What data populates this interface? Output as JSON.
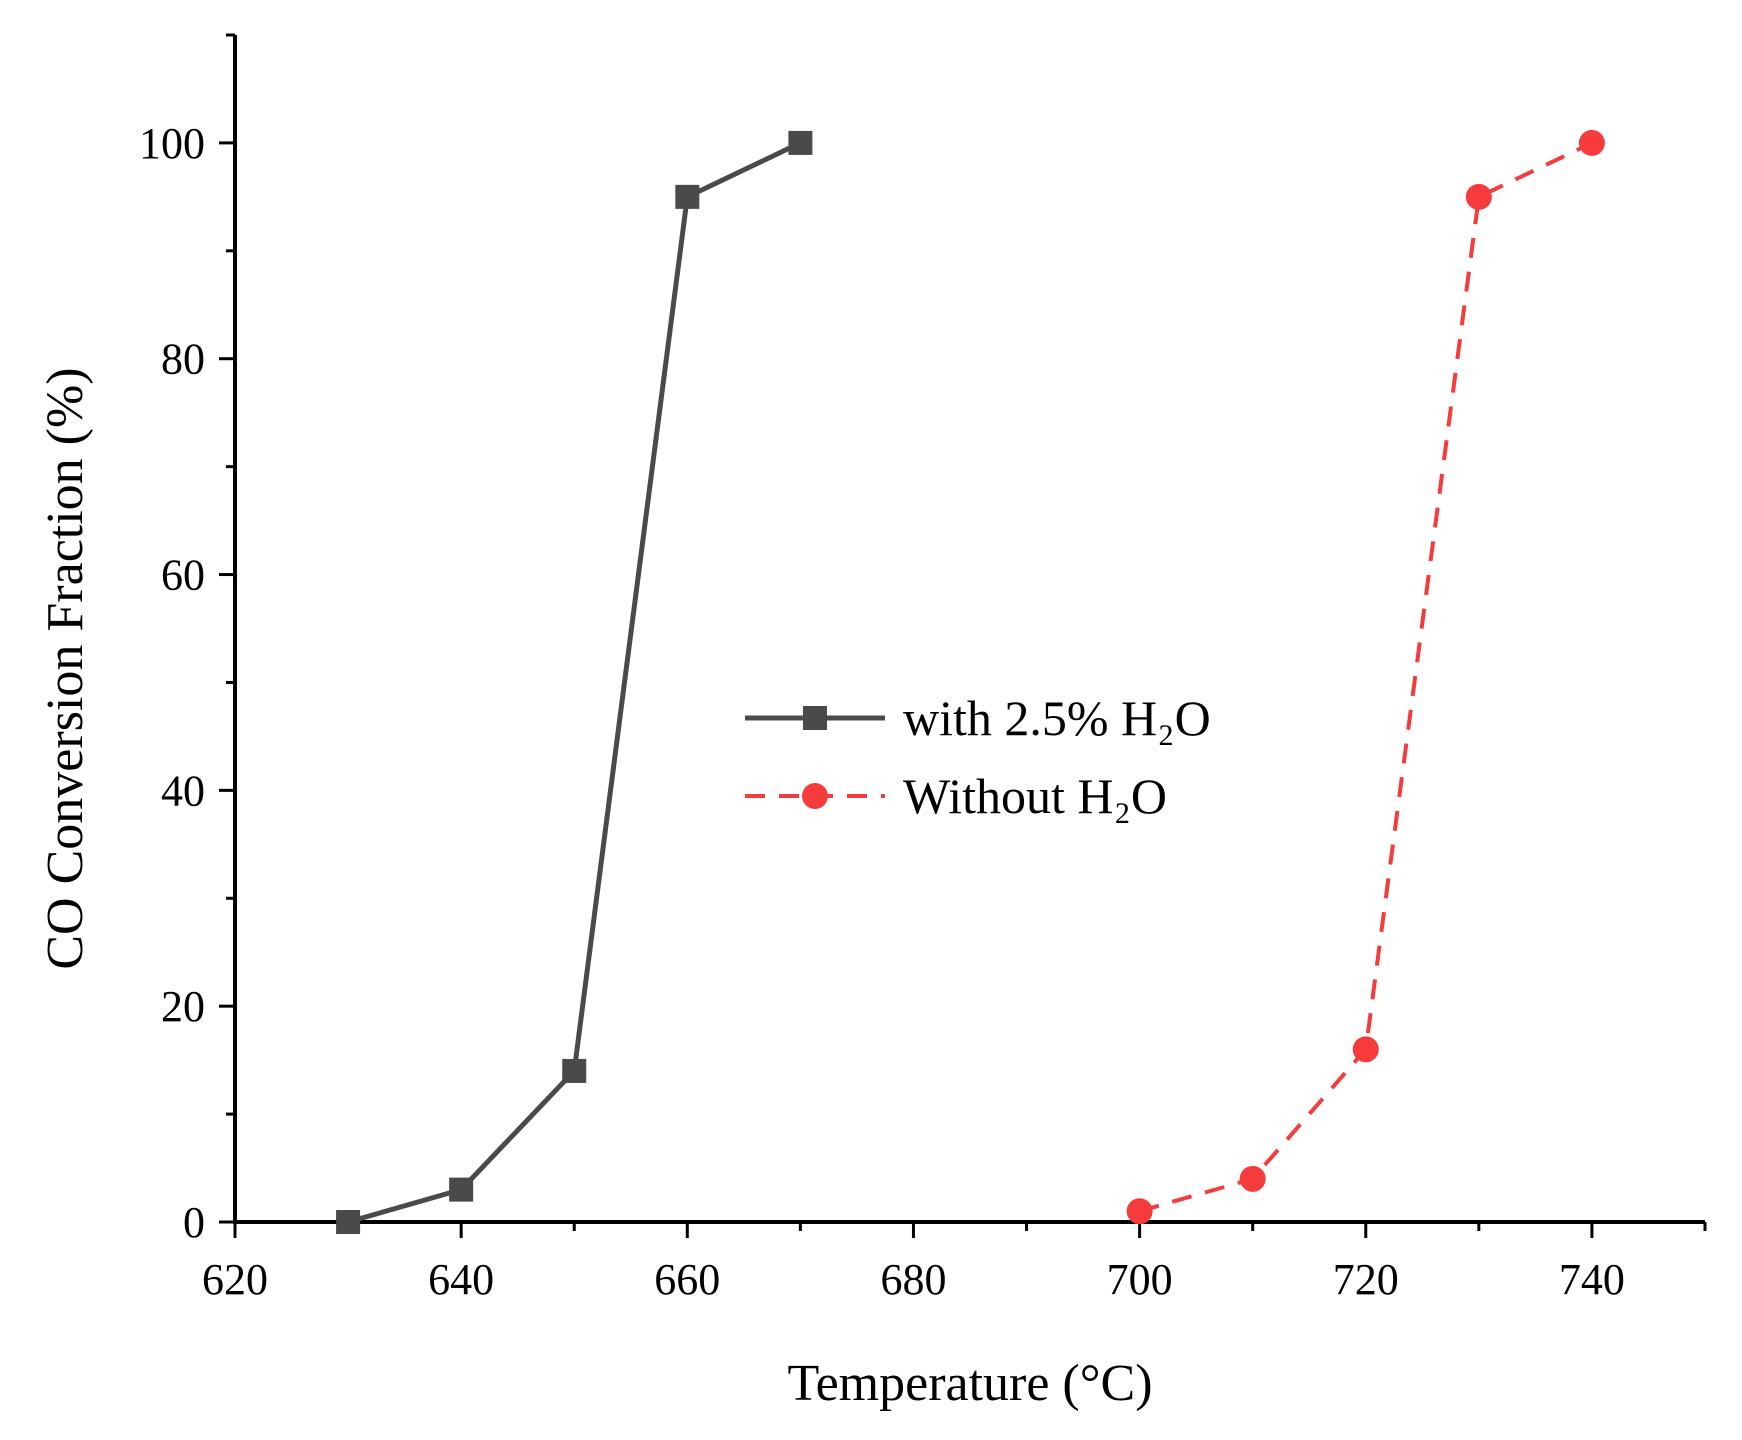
{
  "chart_data": {
    "type": "line",
    "title": "",
    "xlabel": "Temperature (°C)",
    "ylabel": "CO Conversion Fraction (%)",
    "xlim": [
      620,
      750
    ],
    "ylim": [
      0,
      110
    ],
    "xticks": [
      620,
      640,
      660,
      680,
      700,
      720,
      740
    ],
    "yticks": [
      0,
      20,
      40,
      60,
      80,
      100
    ],
    "grid": false,
    "legend_position": "center-right",
    "series": [
      {
        "name": "with 2.5% H₂O",
        "color": "#4a4a4a",
        "line_style": "solid",
        "marker": "square",
        "x": [
          630,
          640,
          650,
          660,
          670
        ],
        "y": [
          0,
          3,
          14,
          95,
          100
        ]
      },
      {
        "name": "Without H₂O",
        "color": "#f53b3b",
        "line_style": "dashed",
        "marker": "circle",
        "x": [
          700,
          710,
          720,
          730,
          740
        ],
        "y": [
          1,
          4,
          16,
          95,
          100
        ]
      }
    ]
  }
}
